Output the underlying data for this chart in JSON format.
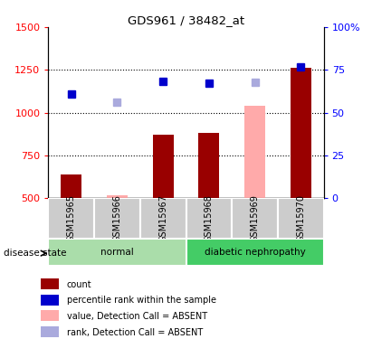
{
  "title": "GDS961 / 38482_at",
  "samples": [
    "GSM15965",
    "GSM15966",
    "GSM15967",
    "GSM15968",
    "GSM15969",
    "GSM15970"
  ],
  "bar_values": [
    640,
    520,
    870,
    880,
    1040,
    1260
  ],
  "bar_absent": [
    false,
    true,
    false,
    false,
    true,
    false
  ],
  "bar_color_normal": "#990000",
  "bar_color_absent": "#ffaaaa",
  "rank_values": [
    1110,
    1060,
    1185,
    1170,
    1180,
    1270
  ],
  "rank_absent": [
    false,
    true,
    false,
    false,
    true,
    false
  ],
  "rank_color_present": "#0000cc",
  "rank_color_absent": "#aaaadd",
  "ylim_left": [
    500,
    1500
  ],
  "ylim_right": [
    0,
    100
  ],
  "yticks_left": [
    500,
    750,
    1000,
    1250,
    1500
  ],
  "yticks_right": [
    0,
    25,
    50,
    75,
    100
  ],
  "ytick_labels_right": [
    "0",
    "25",
    "50",
    "75",
    "100%"
  ],
  "hlines": [
    750,
    1000,
    1250
  ],
  "groups": [
    {
      "label": "normal",
      "start": 0,
      "end": 2,
      "color": "#aaddaa"
    },
    {
      "label": "diabetic nephropathy",
      "start": 3,
      "end": 5,
      "color": "#44cc66"
    }
  ],
  "group_label_text": "disease state",
  "legend_items": [
    {
      "label": "count",
      "color": "#990000"
    },
    {
      "label": "percentile rank within the sample",
      "color": "#0000cc"
    },
    {
      "label": "value, Detection Call = ABSENT",
      "color": "#ffaaaa"
    },
    {
      "label": "rank, Detection Call = ABSENT",
      "color": "#aaaadd"
    }
  ],
  "sample_box_color": "#cccccc",
  "background_color": "#ffffff"
}
